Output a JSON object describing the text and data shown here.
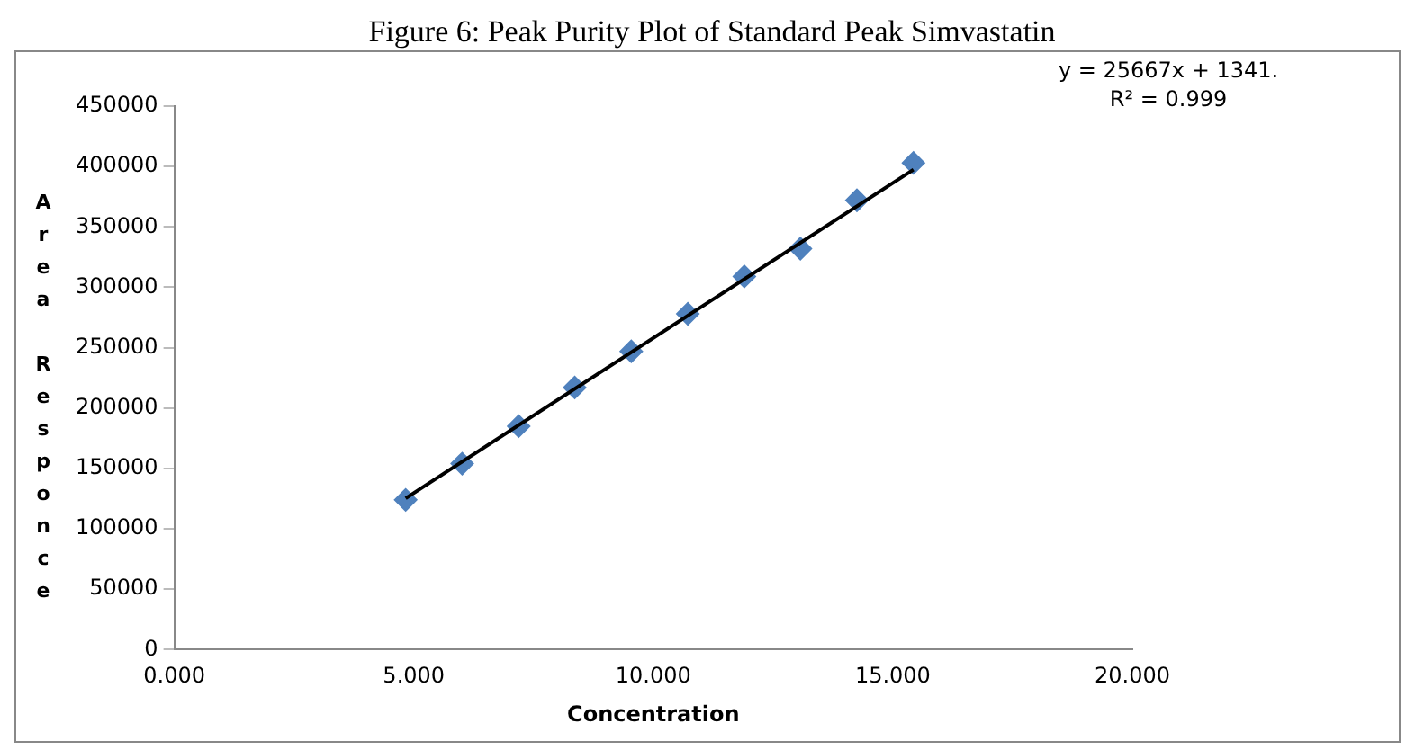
{
  "chart_data": {
    "type": "scatter",
    "title": "Figure 6: Peak Purity Plot of Standard Peak Simvastatin",
    "xlabel": "Concentration",
    "ylabel": "Area Responce",
    "x": [
      4.83,
      6.01,
      7.19,
      8.36,
      9.54,
      10.72,
      11.9,
      13.07,
      14.25,
      15.43
    ],
    "series": [
      {
        "color": "#4f81bd",
        "marker": "diamond",
        "values": [
          124000,
          154000,
          185000,
          217000,
          247000,
          278000,
          309000,
          332000,
          372000,
          403000
        ]
      },
      {
        "type": "line",
        "color": "#000000",
        "x": [
          4.83,
          15.43
        ],
        "values": [
          125300,
          397400
        ],
        "marker": "none"
      }
    ],
    "annotations": [
      "y = 25667x + 1341.",
      "R² = 0.999"
    ],
    "xlim": [
      0,
      20
    ],
    "xticks": [
      {
        "value": 0,
        "label": "0.000"
      },
      {
        "value": 5,
        "label": "5.000"
      },
      {
        "value": 10,
        "label": "10.000"
      },
      {
        "value": 15,
        "label": "15.000"
      },
      {
        "value": 20,
        "label": "20.000"
      }
    ],
    "ylim": [
      0,
      450000
    ],
    "yticks": [
      0,
      50000,
      100000,
      150000,
      200000,
      250000,
      300000,
      350000,
      400000,
      450000
    ],
    "grid": false,
    "legend": false
  }
}
